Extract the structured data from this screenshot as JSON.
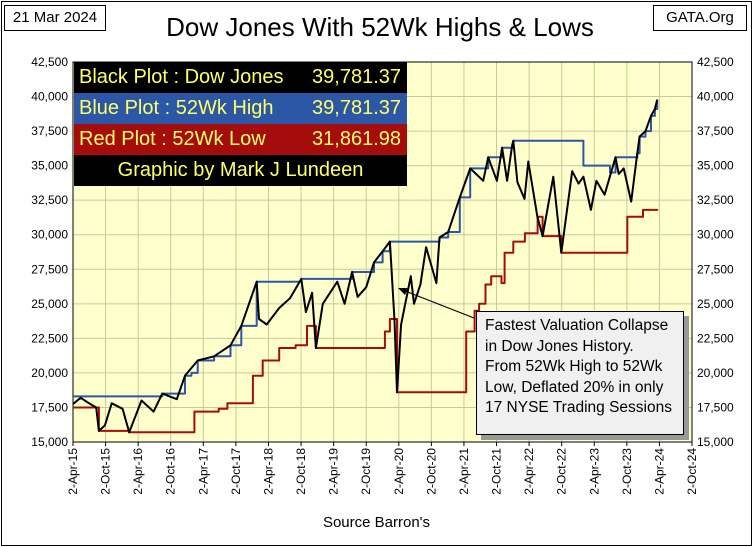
{
  "header": {
    "date": "21 Mar 2024",
    "site": "GATA.Org",
    "title": "Dow Jones With 52Wk Highs & Lows"
  },
  "legend": {
    "black_label": "Black Plot : Dow Jones",
    "black_value": "39,781.37",
    "blue_label": "Blue Plot  : 52Wk High",
    "blue_value": "39,781.37",
    "red_label": "Red Plot   : 52Wk Low",
    "red_value": "31,861.98",
    "credit": "Graphic by Mark J Lundeen"
  },
  "annotation": {
    "lines": [
      "Fastest Valuation Collapse",
      "in Dow Jones History.",
      "From 52Wk High to 52Wk",
      "Low, Deflated 20% in only",
      "17 NYSE Trading Sessions"
    ]
  },
  "footer": {
    "source": "Source Barron's"
  },
  "colors": {
    "plot_bg": "#ffffcc",
    "grid": "#c8c8a0",
    "dow": "#000000",
    "high": "#2b57a6",
    "low": "#a50d0d"
  },
  "chart_data": {
    "type": "line",
    "title": "Dow Jones With 52Wk Highs & Lows",
    "xlabel": "Source Barron's",
    "ylabel": "",
    "ylim": [
      15000,
      42500
    ],
    "xlim": [
      "2015-04-02",
      "2024-10-02"
    ],
    "grid": true,
    "legend_position": "top-left",
    "x_ticks": [
      "2-Apr-15",
      "2-Oct-15",
      "2-Apr-16",
      "2-Oct-16",
      "2-Apr-17",
      "2-Oct-17",
      "2-Apr-18",
      "2-Oct-18",
      "2-Apr-19",
      "2-Oct-19",
      "2-Apr-20",
      "2-Oct-20",
      "2-Apr-21",
      "2-Oct-21",
      "2-Apr-22",
      "2-Oct-22",
      "2-Apr-23",
      "2-Oct-23",
      "2-Apr-24",
      "2-Oct-24"
    ],
    "y_ticks": [
      "15,000",
      "17,500",
      "20,000",
      "22,500",
      "25,000",
      "27,500",
      "30,000",
      "32,500",
      "35,000",
      "37,500",
      "40,000",
      "42,500"
    ],
    "series": [
      {
        "name": "Dow Jones",
        "color": "#000000",
        "x": [
          "2015-04-02",
          "2015-05-15",
          "2015-07-01",
          "2015-08-10",
          "2015-08-25",
          "2015-09-28",
          "2015-11-05",
          "2016-01-05",
          "2016-02-11",
          "2016-04-20",
          "2016-06-27",
          "2016-08-15",
          "2016-11-04",
          "2016-12-20",
          "2017-03-01",
          "2017-06-01",
          "2017-09-01",
          "2017-11-01",
          "2018-01-26",
          "2018-02-08",
          "2018-03-23",
          "2018-06-01",
          "2018-08-01",
          "2018-10-03",
          "2018-10-29",
          "2018-12-03",
          "2018-12-24",
          "2019-02-01",
          "2019-04-23",
          "2019-06-03",
          "2019-07-15",
          "2019-08-15",
          "2019-10-02",
          "2019-11-15",
          "2020-01-02",
          "2020-02-12",
          "2020-03-09",
          "2020-03-23",
          "2020-04-15",
          "2020-06-08",
          "2020-06-26",
          "2020-08-01",
          "2020-09-02",
          "2020-10-30",
          "2020-11-16",
          "2021-01-04",
          "2021-03-10",
          "2021-05-07",
          "2021-07-19",
          "2021-08-16",
          "2021-10-04",
          "2021-11-02",
          "2021-11-30",
          "2021-12-29",
          "2022-01-04",
          "2022-01-27",
          "2022-03-08",
          "2022-03-29",
          "2022-05-19",
          "2022-06-17",
          "2022-08-16",
          "2022-09-30",
          "2022-11-30",
          "2023-01-05",
          "2023-02-01",
          "2023-03-15",
          "2023-04-15",
          "2023-05-31",
          "2023-07-31",
          "2023-08-18",
          "2023-09-15",
          "2023-10-27",
          "2023-11-30",
          "2023-12-13",
          "2024-01-15",
          "2024-02-15",
          "2024-03-08",
          "2024-03-21"
        ],
        "y": [
          17750,
          18200,
          17800,
          17500,
          15800,
          16200,
          17800,
          17400,
          15700,
          18000,
          17200,
          18500,
          18100,
          19800,
          20900,
          21200,
          22000,
          23400,
          26600,
          23900,
          23500,
          24700,
          25400,
          26800,
          24400,
          25800,
          21800,
          25000,
          26600,
          25000,
          27300,
          25500,
          26200,
          28000,
          28800,
          29500,
          23800,
          18600,
          23500,
          27000,
          25000,
          26400,
          29100,
          26500,
          29800,
          30200,
          32700,
          34800,
          33900,
          35600,
          33900,
          36300,
          33900,
          36500,
          36800,
          33800,
          32600,
          35300,
          31300,
          29900,
          34200,
          28700,
          34600,
          33700,
          34200,
          31800,
          33900,
          32900,
          35600,
          34400,
          34800,
          32400,
          35900,
          37100,
          37500,
          38600,
          39100,
          39781
        ]
      },
      {
        "name": "52Wk High",
        "color": "#2b57a6",
        "x": [
          "2015-04-02",
          "2016-08-01",
          "2016-08-15",
          "2016-12-20",
          "2017-01-25",
          "2017-03-01",
          "2017-06-01",
          "2017-09-01",
          "2017-11-01",
          "2018-01-26",
          "2018-10-03",
          "2019-07-15",
          "2019-10-02",
          "2019-11-15",
          "2020-01-02",
          "2020-02-12",
          "2020-11-16",
          "2021-01-04",
          "2021-03-10",
          "2021-05-07",
          "2021-08-16",
          "2021-11-02",
          "2022-01-04",
          "2023-01-01",
          "2023-02-01",
          "2023-06-30",
          "2023-07-31",
          "2023-09-20",
          "2023-10-10",
          "2023-11-30",
          "2023-12-13",
          "2024-01-15",
          "2024-02-15",
          "2024-03-08",
          "2024-03-21"
        ],
        "y": [
          18300,
          18300,
          18500,
          19800,
          20000,
          20900,
          21200,
          22000,
          23400,
          26600,
          26800,
          27300,
          27300,
          28000,
          28800,
          29500,
          29800,
          30200,
          32700,
          34800,
          35600,
          36300,
          36800,
          36800,
          35000,
          34500,
          35600,
          35600,
          35600,
          35900,
          37100,
          37500,
          38600,
          39100,
          39781
        ]
      },
      {
        "name": "52Wk Low",
        "color": "#a50d0d",
        "x": [
          "2015-04-02",
          "2015-08-25",
          "2016-02-11",
          "2016-11-04",
          "2017-02-11",
          "2017-04-01",
          "2017-06-27",
          "2017-08-15",
          "2017-12-01",
          "2018-01-05",
          "2018-03-01",
          "2018-06-01",
          "2018-09-01",
          "2018-11-04",
          "2018-12-24",
          "2019-12-24",
          "2020-01-15",
          "2020-02-12",
          "2020-03-23",
          "2021-03-23",
          "2021-04-15",
          "2021-06-01",
          "2021-06-26",
          "2021-08-01",
          "2021-09-02",
          "2021-10-30",
          "2021-11-16",
          "2022-01-04",
          "2022-03-10",
          "2022-05-07",
          "2022-05-20",
          "2022-06-17",
          "2022-09-30",
          "2023-09-30",
          "2023-10-05",
          "2023-10-27",
          "2024-01-01",
          "2024-03-21"
        ],
        "y": [
          17500,
          15800,
          15700,
          15700,
          17200,
          17200,
          17400,
          17800,
          17800,
          19800,
          20900,
          21800,
          22000,
          23400,
          21800,
          21800,
          23000,
          23900,
          18600,
          18600,
          23000,
          24500,
          25000,
          26400,
          27000,
          26500,
          28700,
          29500,
          30100,
          30100,
          31300,
          29900,
          28700,
          28700,
          31300,
          31300,
          31800,
          31862
        ]
      }
    ]
  }
}
